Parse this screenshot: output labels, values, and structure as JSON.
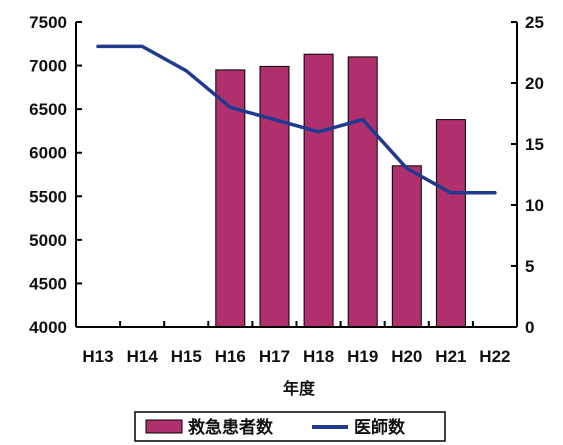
{
  "chart_data": {
    "type": "bar+line",
    "title": "",
    "xlabel": "年度",
    "categories": [
      "H13",
      "H14",
      "H15",
      "H16",
      "H17",
      "H18",
      "H19",
      "H20",
      "H21",
      "H22"
    ],
    "left_axis": {
      "min": 4000,
      "max": 7500,
      "step": 500,
      "ticks": [
        "4000",
        "4500",
        "5000",
        "5500",
        "6000",
        "6500",
        "7000",
        "7500"
      ]
    },
    "right_axis": {
      "min": 0,
      "max": 25,
      "step": 5,
      "ticks": [
        "0",
        "5",
        "10",
        "15",
        "20",
        "25"
      ]
    },
    "series": [
      {
        "name": "救急患者数",
        "type": "bar",
        "axis": "left",
        "color": "#b0306e",
        "values": [
          null,
          null,
          null,
          6950,
          6990,
          7130,
          7100,
          5850,
          6380,
          null
        ]
      },
      {
        "name": "医師数",
        "type": "line",
        "axis": "right",
        "color": "#1f3a8f",
        "values": [
          23,
          23,
          21,
          18,
          17,
          16,
          17,
          13,
          11,
          11
        ]
      }
    ],
    "grid": false,
    "legend": "bottom"
  }
}
